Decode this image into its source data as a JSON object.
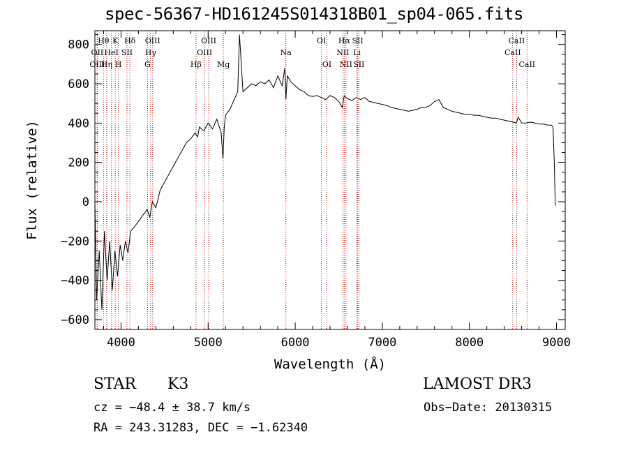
{
  "chart_data": {
    "type": "line",
    "title": "spec-56367-HD161245S014318B01_sp04-065.fits",
    "xlabel": "Wavelength (Å)",
    "ylabel": "Flux (relative)",
    "xlim": [
      3700,
      9100
    ],
    "ylim": [
      -650,
      870
    ],
    "x_ticks": [
      4000,
      5000,
      6000,
      7000,
      8000,
      9000
    ],
    "y_ticks": [
      -600,
      -400,
      -200,
      0,
      200,
      400,
      600,
      800
    ],
    "series": [
      {
        "name": "spectrum",
        "x": [
          3700,
          3720,
          3750,
          3780,
          3810,
          3840,
          3870,
          3900,
          3930,
          3960,
          3990,
          4020,
          4050,
          4080,
          4110,
          4150,
          4200,
          4250,
          4300,
          4330,
          4360,
          4400,
          4450,
          4500,
          4550,
          4600,
          4650,
          4700,
          4750,
          4800,
          4850,
          4880,
          4900,
          4950,
          5000,
          5050,
          5100,
          5150,
          5170,
          5185,
          5200,
          5250,
          5300,
          5340,
          5360,
          5400,
          5450,
          5500,
          5550,
          5600,
          5650,
          5700,
          5750,
          5800,
          5850,
          5880,
          5893,
          5910,
          5950,
          6000,
          6050,
          6100,
          6150,
          6200,
          6250,
          6300,
          6350,
          6400,
          6450,
          6500,
          6540,
          6563,
          6580,
          6620,
          6650,
          6700,
          6750,
          6800,
          6850,
          6900,
          6950,
          7000,
          7050,
          7100,
          7150,
          7200,
          7250,
          7300,
          7350,
          7400,
          7450,
          7500,
          7550,
          7600,
          7650,
          7700,
          7750,
          7800,
          7850,
          7900,
          7950,
          8000,
          8050,
          8100,
          8150,
          8200,
          8250,
          8300,
          8350,
          8400,
          8450,
          8500,
          8540,
          8560,
          8600,
          8650,
          8700,
          8750,
          8800,
          8850,
          8900,
          8940,
          8960,
          8975,
          8985,
          8990
        ],
        "values": [
          0,
          -500,
          -250,
          -550,
          -150,
          -400,
          -200,
          -450,
          -250,
          -380,
          -220,
          -300,
          -200,
          -260,
          -150,
          -130,
          -100,
          -70,
          -40,
          -80,
          0,
          -30,
          60,
          100,
          140,
          180,
          220,
          260,
          300,
          320,
          350,
          330,
          380,
          360,
          400,
          370,
          420,
          350,
          220,
          380,
          440,
          470,
          520,
          560,
          850,
          560,
          580,
          600,
          590,
          610,
          600,
          620,
          580,
          640,
          590,
          680,
          520,
          640,
          610,
          590,
          570,
          560,
          540,
          535,
          540,
          530,
          520,
          540,
          530,
          510,
          480,
          540,
          530,
          520,
          515,
          530,
          520,
          530,
          510,
          505,
          500,
          495,
          490,
          480,
          475,
          470,
          465,
          460,
          465,
          470,
          480,
          480,
          490,
          510,
          520,
          480,
          470,
          460,
          455,
          450,
          445,
          445,
          440,
          440,
          435,
          430,
          425,
          425,
          420,
          415,
          410,
          405,
          400,
          430,
          400,
          400,
          405,
          400,
          395,
          395,
          390,
          390,
          380,
          200,
          0,
          -20
        ]
      }
    ],
    "line_markers": [
      {
        "label": "Hθ",
        "x": 3798,
        "row": 1
      },
      {
        "label": "OII",
        "x": 3727,
        "row": 2
      },
      {
        "label": "OIII",
        "x": 3727,
        "row": 3
      },
      {
        "label": "K",
        "x": 3934,
        "row": 1
      },
      {
        "label": "HeI",
        "x": 3889,
        "row": 2
      },
      {
        "label": "Hη",
        "x": 3835,
        "row": 3
      },
      {
        "label": "SII",
        "x": 4068,
        "row": 2
      },
      {
        "label": "H",
        "x": 3970,
        "row": 3
      },
      {
        "label": "Hδ",
        "x": 4102,
        "row": 1
      },
      {
        "label": "OIII",
        "x": 4363,
        "row": 1
      },
      {
        "label": "Hγ",
        "x": 4340,
        "row": 2
      },
      {
        "label": "G",
        "x": 4304,
        "row": 3
      },
      {
        "label": "Hβ",
        "x": 4861,
        "row": 3
      },
      {
        "label": "OIII",
        "x": 5007,
        "row": 1
      },
      {
        "label": "OIII",
        "x": 4959,
        "row": 2
      },
      {
        "label": "Mg",
        "x": 5175,
        "row": 3
      },
      {
        "label": "Na",
        "x": 5893,
        "row": 2
      },
      {
        "label": "OI",
        "x": 6300,
        "row": 1
      },
      {
        "label": "OI",
        "x": 6364,
        "row": 3
      },
      {
        "label": "Hα",
        "x": 6563,
        "row": 1
      },
      {
        "label": "NII",
        "x": 6548,
        "row": 2
      },
      {
        "label": "NII",
        "x": 6583,
        "row": 3
      },
      {
        "label": "SII",
        "x": 6717,
        "row": 1
      },
      {
        "label": "Li",
        "x": 6708,
        "row": 2
      },
      {
        "label": "SII",
        "x": 6731,
        "row": 3
      },
      {
        "label": "CaII",
        "x": 8542,
        "row": 1
      },
      {
        "label": "CaII",
        "x": 8498,
        "row": 2
      },
      {
        "label": "CaII",
        "x": 8662,
        "row": 3
      }
    ]
  },
  "info": {
    "object_class": "STAR",
    "subclass": "K3",
    "survey": "LAMOST DR3",
    "cz": "cz = −48.4 ± 38.7 km/s",
    "obs_date": "Obs−Date: 20130315",
    "coords": "RA = 243.31283, DEC =  −1.62340"
  },
  "colors": {
    "spectrum": "#000000",
    "line_marker": "#c00000",
    "axes": "#000000"
  }
}
